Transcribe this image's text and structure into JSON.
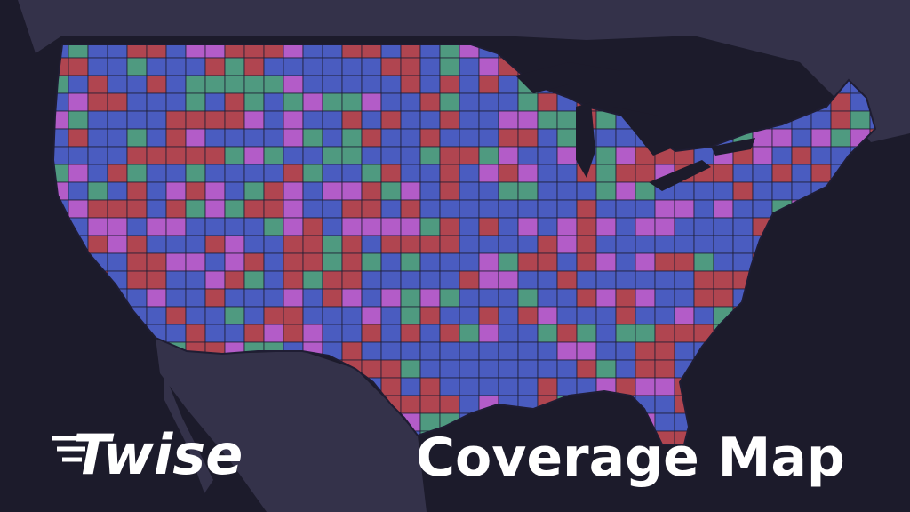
{
  "logo": {
    "text": "Twise"
  },
  "title": "Coverage Map"
}
